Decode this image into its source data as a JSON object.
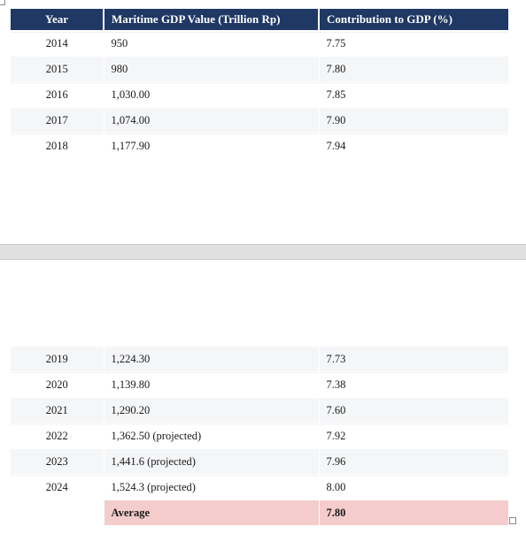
{
  "headers": {
    "year": "Year",
    "value": "Maritime GDP Value (Trillion Rp)",
    "contribution": "Contribution to GDP (%)"
  },
  "rows_top": [
    {
      "year": "2014",
      "value": "950",
      "pct": "7.75"
    },
    {
      "year": "2015",
      "value": "980",
      "pct": "7.80"
    },
    {
      "year": "2016",
      "value": "1,030.00",
      "pct": "7.85"
    },
    {
      "year": "2017",
      "value": "1,074.00",
      "pct": "7.90"
    },
    {
      "year": "2018",
      "value": "1,177.90",
      "pct": "7.94"
    }
  ],
  "rows_bottom": [
    {
      "year": "2019",
      "value": "1,224.30",
      "pct": "7.73"
    },
    {
      "year": "2020",
      "value": "1,139.80",
      "pct": "7.38"
    },
    {
      "year": "2021",
      "value": "1,290.20",
      "pct": "7.60"
    },
    {
      "year": "2022",
      "value": "1,362.50 (projected)",
      "pct": "7.92"
    },
    {
      "year": "2023",
      "value": "1,441.6 (projected)",
      "pct": "7.96"
    },
    {
      "year": "2024",
      "value": "1,524.3 (projected)",
      "pct": "8.00"
    }
  ],
  "average": {
    "label": "Average",
    "pct": "7.80"
  },
  "colors": {
    "header_bg": "#1f3864",
    "header_text": "#ffffff",
    "average_bg": "#f4cccc",
    "alt_row_bg": "#f5f6f8"
  }
}
